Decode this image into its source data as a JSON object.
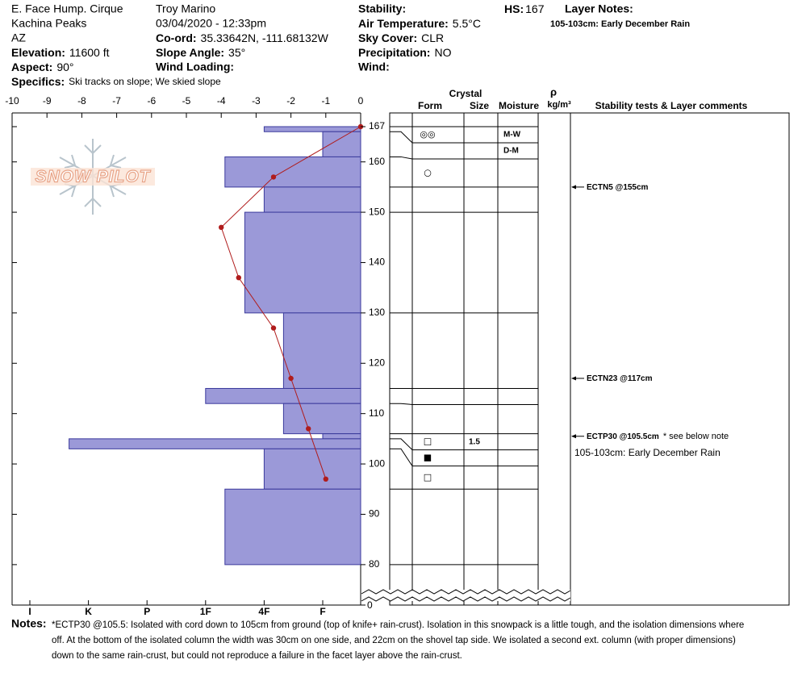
{
  "header": {
    "location": "E. Face Hump. Cirque",
    "range": "Kachina Peaks",
    "state": "AZ",
    "elevation": {
      "label": "Elevation:",
      "value": "11600 ft"
    },
    "aspect": {
      "label": "Aspect:",
      "value": "90°"
    },
    "specifics": {
      "label": "Specifics:",
      "value": "Ski tracks on slope; We skied slope"
    },
    "observer": "Troy Marino",
    "datetime": "03/04/2020 - 12:33pm",
    "coord": {
      "label": "Co-ord:",
      "value": "35.33642N, -111.68132W"
    },
    "slope_angle": {
      "label": "Slope Angle:",
      "value": "35°"
    },
    "wind_loading": "Wind Loading:",
    "stability": "Stability:",
    "air_temperature": {
      "label": "Air Temperature:",
      "value": "5.5°C"
    },
    "sky_cover": {
      "label": "Sky Cover:",
      "value": "CLR"
    },
    "precipitation": {
      "label": "Precipitation:",
      "value": "NO"
    },
    "wind": "Wind:",
    "hs": {
      "label": "HS:",
      "value": 167
    },
    "layer_notes_title": "Layer Notes:",
    "layer_notes": [
      "105-103cm: Early December Rain"
    ]
  },
  "logo": "SNOW PILOT",
  "temperature_axis": {
    "ticks": [
      -10,
      -9,
      -8,
      -7,
      -6,
      -5,
      -4,
      -3,
      -2,
      -1,
      0
    ]
  },
  "height_axis": {
    "ticks": [
      167,
      160,
      150,
      140,
      130,
      120,
      110,
      100,
      90,
      80
    ],
    "ground": 0
  },
  "hardness_axis": {
    "ticks": [
      "I",
      "K",
      "P",
      "1F",
      "4F",
      "F"
    ]
  },
  "table_headers": {
    "crystal": "Crystal",
    "form": "Form",
    "size": "Size",
    "moisture": "Moisture",
    "rho": "ρ",
    "density": "kg/m³",
    "comments": "Stability tests & Layer comments"
  },
  "layers": [
    {
      "top": 167,
      "bottom": 166,
      "hardness": "4F",
      "form": "◎◎",
      "moisture": "M-W"
    },
    {
      "top": 166,
      "bottom": 161,
      "hardness": "F",
      "moisture": "D-M"
    },
    {
      "top": 161,
      "bottom": 155,
      "hardness": "1F-",
      "form": "○"
    },
    {
      "top": 155,
      "bottom": 150,
      "hardness": "4F"
    },
    {
      "top": 150,
      "bottom": 130,
      "hardness": "4F+"
    },
    {
      "top": 130,
      "bottom": 115,
      "hardness": "4F-"
    },
    {
      "top": 115,
      "bottom": 112,
      "hardness": "1F"
    },
    {
      "top": 112,
      "bottom": 106,
      "hardness": "4F-"
    },
    {
      "top": 106,
      "bottom": 105,
      "hardness": "F",
      "form": "□",
      "size": "1.5"
    },
    {
      "top": 105,
      "bottom": 103,
      "hardness": "K+",
      "form": "■"
    },
    {
      "top": 103,
      "bottom": 95,
      "hardness": "4F",
      "form": "□"
    },
    {
      "top": 95,
      "bottom": 80,
      "hardness": "1F-"
    }
  ],
  "temperatures": [
    {
      "height": 167,
      "temp": 0
    },
    {
      "height": 157,
      "temp": -2.5
    },
    {
      "height": 147,
      "temp": -4
    },
    {
      "height": 137,
      "temp": -3.5
    },
    {
      "height": 127,
      "temp": -2.5
    },
    {
      "height": 117,
      "temp": -2
    },
    {
      "height": 107,
      "temp": -1.5
    },
    {
      "height": 97,
      "temp": -1
    }
  ],
  "stability_tests": [
    {
      "height": 155,
      "label": "ECTN5 @155cm"
    },
    {
      "height": 117,
      "label": "ECTN23 @117cm"
    },
    {
      "height": 105.5,
      "label": "ECTP30 @105.5cm",
      "note": "* see below note"
    }
  ],
  "layer_comment": "105-103cm: Early December Rain",
  "notes": {
    "label": "Notes:",
    "lines": [
      "*ECTP30 @105.5: Isolated with cord down to 105cm from ground (top of knife+ rain-crust). Isolation in this snowpack is a little tough, and the isolation dimensions where",
      "off. At the bottom of the isolated column the width was 30cm on one side, and 22cm on the shovel tap side. We isolated a second ext. column (with proper dimensions)",
      "down to the same rain-crust, but could not reproduce a failure in the facet layer above the rain-crust."
    ]
  }
}
